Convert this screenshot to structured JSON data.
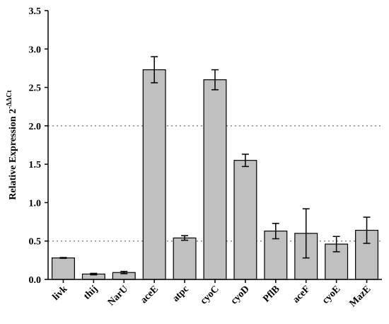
{
  "chart_data": {
    "type": "bar",
    "ylabel": "Relative Expression 2",
    "ylabel_superscript": "-ΔΔCt",
    "categories": [
      "livk",
      "thij",
      "NarU",
      "aceE",
      "atpc",
      "cyoC",
      "cyoD",
      "PflB",
      "aceF",
      "cyoE",
      "MazE"
    ],
    "values": [
      0.28,
      0.07,
      0.09,
      2.73,
      0.54,
      2.6,
      1.55,
      0.63,
      0.6,
      0.46,
      0.64
    ],
    "errors": [
      0.005,
      0.01,
      0.015,
      0.17,
      0.03,
      0.13,
      0.08,
      0.1,
      0.32,
      0.1,
      0.17
    ],
    "color": "#c0c0c0",
    "ylim": [
      0,
      3.5
    ],
    "yticks": [
      {
        "value": 0,
        "label": "0.0"
      },
      0.5,
      {
        "value": 1,
        "label": "1.0"
      },
      1.5,
      {
        "value": 2,
        "label": "2.0"
      },
      2.5,
      {
        "value": 3,
        "label": "3.0"
      },
      3.5
    ],
    "reference_lines": [
      2,
      0.5
    ]
  }
}
